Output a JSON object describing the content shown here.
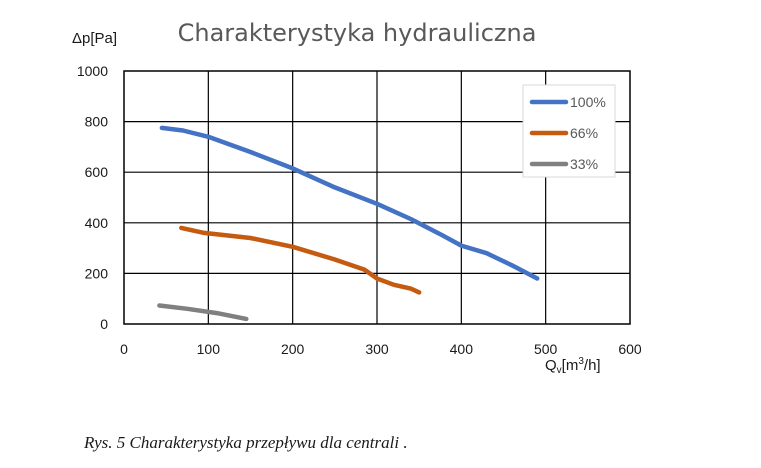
{
  "chart_data": {
    "type": "line",
    "title": "Charakterystyka hydrauliczna",
    "ylabel": "Δp[Pa]",
    "xlabel": {
      "base": "Q",
      "sub": "v",
      "pre": "[m",
      "sup": "3",
      "post": "/h]"
    },
    "xlim": [
      0,
      600
    ],
    "ylim": [
      0,
      1000
    ],
    "xticks": [
      "0",
      "100",
      "200",
      "300",
      "400",
      "500",
      "600"
    ],
    "yticks": [
      "0",
      "200",
      "400",
      "600",
      "800",
      "1000"
    ],
    "grid": true,
    "legend_position": "top-right",
    "series": [
      {
        "name": "100%",
        "color": "#4472c4",
        "x": [
          45,
          70,
          100,
          150,
          200,
          250,
          300,
          340,
          375,
          400,
          430,
          460,
          490
        ],
        "y": [
          775,
          765,
          740,
          680,
          615,
          540,
          475,
          415,
          355,
          310,
          280,
          232,
          180
        ]
      },
      {
        "name": "66%",
        "color": "#c55a11",
        "x": [
          68,
          95,
          150,
          200,
          250,
          285,
          300,
          320,
          340,
          350
        ],
        "y": [
          380,
          360,
          340,
          305,
          255,
          215,
          180,
          155,
          140,
          125
        ]
      },
      {
        "name": "33%",
        "color": "#808080",
        "x": [
          42,
          75,
          110,
          145
        ],
        "y": [
          73,
          60,
          43,
          20
        ]
      }
    ]
  },
  "caption": "Rys. 5 Charakterystyka przepływu dla centrali ."
}
